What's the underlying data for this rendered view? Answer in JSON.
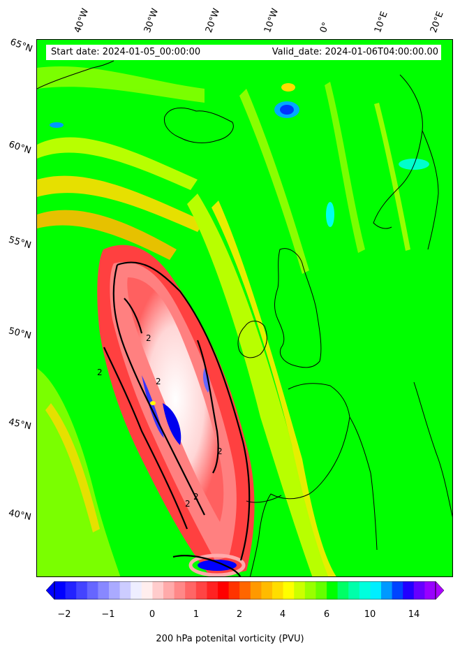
{
  "map": {
    "start_date": "Start date: 2024-01-05_00:00:00",
    "valid_date": "Valid_date: 2024-01-06T04:00:00.00",
    "lon_labels": [
      "40°W",
      "30°W",
      "20°W",
      "10°W",
      "0°",
      "10°E",
      "20°E"
    ],
    "lat_labels": [
      "65°N",
      "60°N",
      "55°N",
      "50°N",
      "45°N",
      "40°N"
    ],
    "contour_label": "2",
    "background_color": "#00ff00"
  },
  "colorbar": {
    "label": "200 hPa potenital vorticity (PVU)",
    "ticks": [
      "−2",
      "−1",
      "0",
      "1",
      "2",
      "4",
      "6",
      "10",
      "14"
    ],
    "colors": [
      "#0000ff",
      "#2222ff",
      "#4444ff",
      "#6666ff",
      "#8888ff",
      "#aaaaff",
      "#ccccff",
      "#eeeeff",
      "#ffeeee",
      "#ffcccc",
      "#ffaaaa",
      "#ff8888",
      "#ff6666",
      "#ff4444",
      "#ff2222",
      "#ff0000",
      "#ff3300",
      "#ff6600",
      "#ff9900",
      "#ffbb00",
      "#ffdd00",
      "#ffff00",
      "#ccff00",
      "#99ff00",
      "#66ff00",
      "#00ff00",
      "#00ff66",
      "#00ffaa",
      "#00ffdd",
      "#00eeff",
      "#0099ff",
      "#0044ff",
      "#2200ff",
      "#6600ff",
      "#9900ff"
    ],
    "extend_min_color": "#0000ff",
    "extend_max_color": "#aa00ff"
  }
}
